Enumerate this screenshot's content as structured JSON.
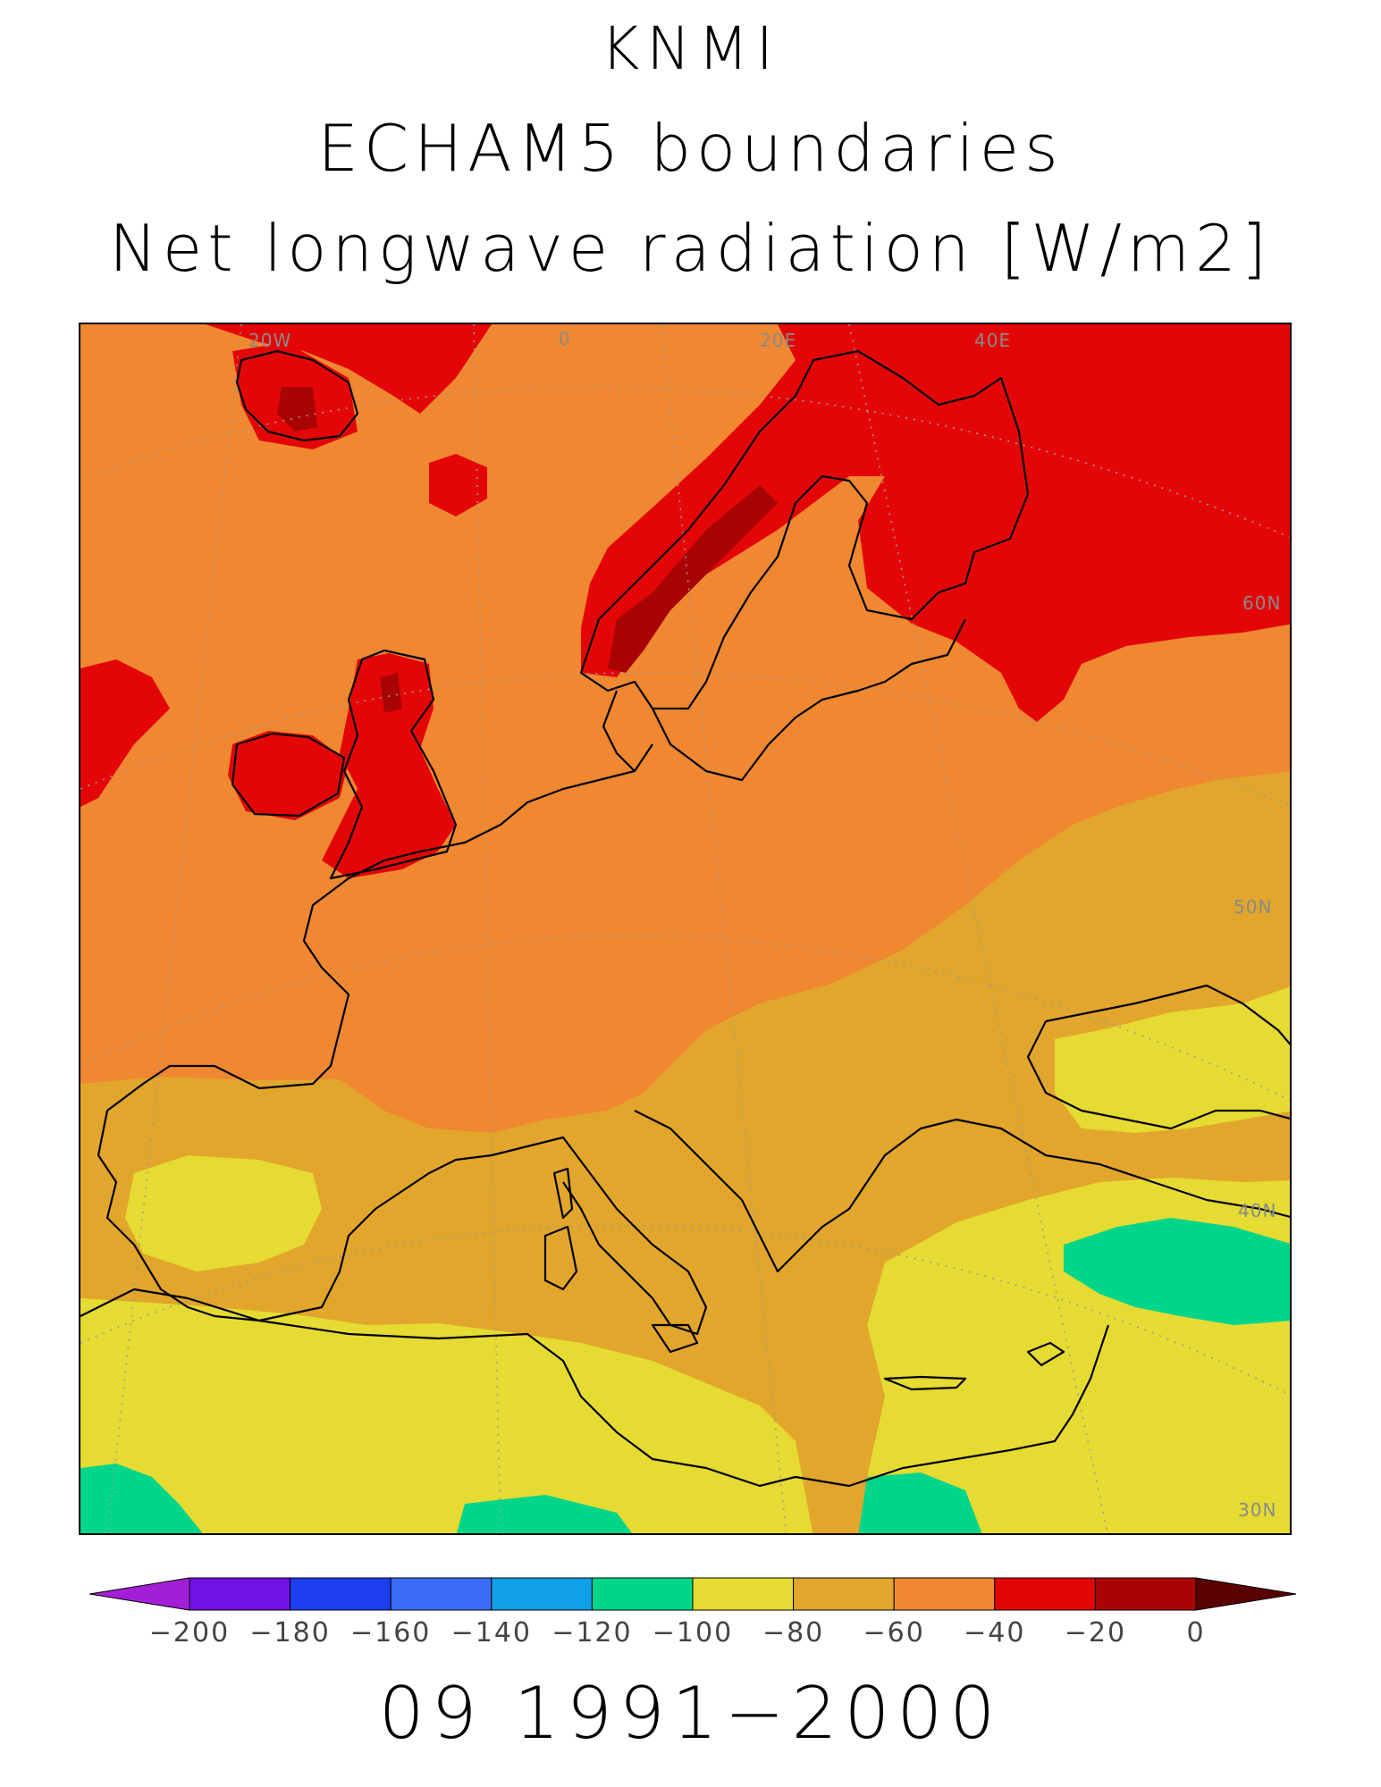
{
  "titles": {
    "line1": "KNMI",
    "line2": "ECHAM5 boundaries",
    "line3": "Net longwave radiation [W/m2]"
  },
  "period": "09 1991−2000",
  "map": {
    "region": "Europe",
    "grid_labels": {
      "lon": [
        "20W",
        "0",
        "20E",
        "40E"
      ],
      "lat": [
        "60N",
        "50N",
        "40N",
        "30N"
      ]
    }
  },
  "colorbar": {
    "ticks": [
      "−200",
      "−180",
      "−160",
      "−140",
      "−120",
      "−100",
      "−80",
      "−60",
      "−40",
      "−20",
      "0"
    ],
    "colors": [
      "#a21fd6",
      "#7111e3",
      "#1e3ff0",
      "#3a6cf7",
      "#0fa0e6",
      "#00d68a",
      "#e5db32",
      "#e2a62c",
      "#ef8830",
      "#e40606",
      "#a90404",
      "#5a0101"
    ]
  },
  "legend_colors": {
    "land_cold_dark": "#a90404",
    "cold": "#e40606",
    "mid_orange": "#ef8830",
    "amber": "#e2a62c",
    "yellow": "#e5db32",
    "green": "#00d68a",
    "coastline": "#000000",
    "gridline": "#9a9a9a"
  }
}
